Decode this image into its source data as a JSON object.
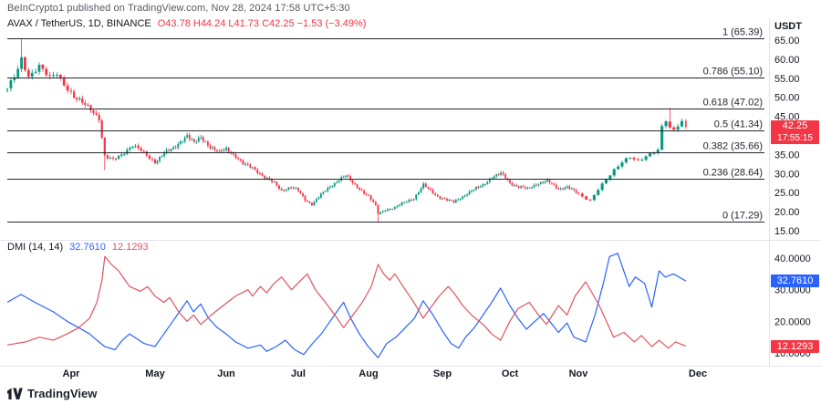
{
  "header": {
    "attribution": "BeInCrypto1 published on TradingView.com, Nov 28, 2024 17:58 UTC+5:30"
  },
  "legend": {
    "symbol": "AVAX / TetherUS, 1D, BINANCE",
    "ohlc": "O43.78  H44.24  L41.73  C42.25  −1.53 (−3.49%)"
  },
  "indicator_legend": {
    "name": "DMI (14, 14)",
    "plus_di": "32.7610",
    "minus_di": "12.1293"
  },
  "watermark": {
    "text": "TradingView"
  },
  "colors": {
    "up": "#089981",
    "down": "#F23645",
    "plus_di": "#2962FF",
    "minus_di": "#E0545E",
    "axis_text": "#131722",
    "muted": "#787b86",
    "fib": "#22262f",
    "separator": "#e0e3eb",
    "badge_red": "#F23645",
    "badge_blue": "#2962FF"
  },
  "chart_data": {
    "type": "candlestick",
    "title": "AVAX / TetherUS, 1D, BINANCE with Fibonacci retracement and DMI(14,14)",
    "symbol": "AVAX/USDT",
    "exchange": "BINANCE",
    "interval": "1D",
    "x_axis": {
      "months": [
        {
          "label": "Apr",
          "t": 0.0695
        },
        {
          "label": "May",
          "t": 0.1853
        },
        {
          "label": "Jun",
          "t": 0.305
        },
        {
          "label": "Jul",
          "t": 0.4208
        },
        {
          "label": "Aug",
          "t": 0.5405
        },
        {
          "label": "Sep",
          "t": 0.6602
        },
        {
          "label": "Oct",
          "t": 0.7761
        },
        {
          "label": "Nov",
          "t": 0.8958
        },
        {
          "label": "Dec",
          "t": 1.0116
        }
      ],
      "time_map": [
        [
          0,
          8
        ],
        [
          0.0695,
          78
        ],
        [
          0.1853,
          170
        ],
        [
          0.305,
          248
        ],
        [
          0.4208,
          327
        ],
        [
          0.5405,
          404
        ],
        [
          0.6602,
          485
        ],
        [
          0.7761,
          559
        ],
        [
          0.8958,
          634
        ],
        [
          1.0116,
          765
        ]
      ]
    },
    "price_pane": {
      "currency_label": "USDT",
      "y_axis": {
        "max": 65.96,
        "min": 13.8,
        "ticks": [
          {
            "label": "65.00",
            "value": 65
          },
          {
            "label": "60.00",
            "value": 60
          },
          {
            "label": "55.00",
            "value": 55
          },
          {
            "label": "50.00",
            "value": 50
          },
          {
            "label": "45.00",
            "value": 45
          },
          {
            "label": "35.00",
            "value": 35
          },
          {
            "label": "30.00",
            "value": 30
          },
          {
            "label": "25.00",
            "value": 25
          },
          {
            "label": "20.00",
            "value": 20
          },
          {
            "label": "15.00",
            "value": 15
          }
        ]
      },
      "fib_levels": [
        {
          "label": "1 (65.39)",
          "price": 65.39
        },
        {
          "label": "0.786 (55.10)",
          "price": 55.1
        },
        {
          "label": "0.618 (47.02)",
          "price": 47.02
        },
        {
          "label": "0.5 (41.34)",
          "price": 41.34
        },
        {
          "label": "0.382 (35.66)",
          "price": 35.66
        },
        {
          "label": "0.236 (28.64)",
          "price": 28.64
        },
        {
          "label": "0 (17.29)",
          "price": 17.29
        }
      ],
      "candle_count": 260,
      "close_path": [
        [
          0,
          52
        ],
        [
          0.0116,
          57.5
        ],
        [
          0.0154,
          60.5
        ],
        [
          0.0232,
          55.5
        ],
        [
          0.0347,
          58
        ],
        [
          0.0463,
          55
        ],
        [
          0.0541,
          56.5
        ],
        [
          0.0618,
          53.5
        ],
        [
          0.0734,
          50
        ],
        [
          0.0849,
          48.5
        ],
        [
          0.0965,
          47
        ],
        [
          0.1081,
          44.5
        ],
        [
          0.1158,
          34.5
        ],
        [
          0.1274,
          33.5
        ],
        [
          0.139,
          35
        ],
        [
          0.1544,
          37.5
        ],
        [
          0.166,
          36
        ],
        [
          0.1776,
          34
        ],
        [
          0.1853,
          33
        ],
        [
          0.2008,
          35.5
        ],
        [
          0.2162,
          36.5
        ],
        [
          0.2317,
          39
        ],
        [
          0.2394,
          40
        ],
        [
          0.251,
          38
        ],
        [
          0.2626,
          39.5
        ],
        [
          0.278,
          37
        ],
        [
          0.2934,
          35.5
        ],
        [
          0.305,
          36.5
        ],
        [
          0.3205,
          34.5
        ],
        [
          0.332,
          32.5
        ],
        [
          0.3475,
          31.5
        ],
        [
          0.3668,
          29
        ],
        [
          0.3822,
          27.5
        ],
        [
          0.3938,
          25.5
        ],
        [
          0.4093,
          26.5
        ],
        [
          0.4208,
          25.5
        ],
        [
          0.4324,
          23
        ],
        [
          0.444,
          22
        ],
        [
          0.4595,
          24.5
        ],
        [
          0.4749,
          26.5
        ],
        [
          0.4903,
          28.5
        ],
        [
          0.5019,
          29.5
        ],
        [
          0.5135,
          27.5
        ],
        [
          0.5251,
          26
        ],
        [
          0.5405,
          24
        ],
        [
          0.5521,
          21.5
        ],
        [
          0.556,
          19.5
        ],
        [
          0.5676,
          20.5
        ],
        [
          0.583,
          21
        ],
        [
          0.5985,
          22.5
        ],
        [
          0.6139,
          23.5
        ],
        [
          0.6293,
          27
        ],
        [
          0.6409,
          25.5
        ],
        [
          0.6525,
          24
        ],
        [
          0.6602,
          23.5
        ],
        [
          0.6795,
          22.5
        ],
        [
          0.695,
          24
        ],
        [
          0.7104,
          25.5
        ],
        [
          0.7297,
          27
        ],
        [
          0.7452,
          29
        ],
        [
          0.7606,
          30
        ],
        [
          0.7683,
          29
        ],
        [
          0.7761,
          27.5
        ],
        [
          0.7915,
          26.5
        ],
        [
          0.807,
          26
        ],
        [
          0.8263,
          27.5
        ],
        [
          0.8417,
          28
        ],
        [
          0.861,
          26
        ],
        [
          0.8764,
          26.5
        ],
        [
          0.888,
          25.5
        ],
        [
          0.8958,
          24.5
        ],
        [
          0.9073,
          23
        ],
        [
          0.9151,
          26
        ],
        [
          0.9266,
          29.5
        ],
        [
          0.9382,
          33
        ],
        [
          0.9459,
          34.5
        ],
        [
          0.9537,
          33.5
        ],
        [
          0.9653,
          35
        ],
        [
          0.973,
          36
        ],
        [
          0.9768,
          42
        ],
        [
          0.9807,
          44
        ],
        [
          0.9846,
          42
        ],
        [
          0.9884,
          41.5
        ],
        [
          0.9923,
          43
        ],
        [
          0.9961,
          43.78
        ],
        [
          1,
          42.25
        ]
      ],
      "wick_events": [
        {
          "t": 0.0154,
          "high": 65.39
        },
        {
          "t": 0.1158,
          "low": 30.9
        },
        {
          "t": 0.556,
          "low": 17.29
        },
        {
          "t": 0.9846,
          "high": 47.2
        }
      ],
      "last_candle": {
        "o": 43.78,
        "h": 44.24,
        "l": 41.73,
        "c": 42.25
      },
      "last_price": {
        "value": "42.25",
        "countdown": "17:55:15"
      }
    },
    "dmi_pane": {
      "name": "DMI (14, 14)",
      "y_axis": {
        "max": 44.33,
        "min": 6.83,
        "ticks": [
          {
            "label": "40.0000",
            "value": 40
          },
          {
            "label": "30.0000",
            "value": 30
          },
          {
            "label": "20.0000",
            "value": 20
          },
          {
            "label": "10.0000",
            "value": 10
          }
        ]
      },
      "series": [
        {
          "name": "plus-di",
          "color": "#2962FF",
          "last_label": "32.7610",
          "last_value": 32.761,
          "points": [
            [
              0,
              26
            ],
            [
              0.015,
              28.5
            ],
            [
              0.03,
              26
            ],
            [
              0.05,
              23
            ],
            [
              0.065,
              20
            ],
            [
              0.08,
              18
            ],
            [
              0.095,
              16
            ],
            [
              0.105,
              14
            ],
            [
              0.116,
              12
            ],
            [
              0.13,
              11
            ],
            [
              0.14,
              14
            ],
            [
              0.15,
              16
            ],
            [
              0.16,
              14.5
            ],
            [
              0.17,
              13
            ],
            [
              0.185,
              12
            ],
            [
              0.2,
              16
            ],
            [
              0.215,
              20
            ],
            [
              0.23,
              24
            ],
            [
              0.239,
              26.5
            ],
            [
              0.25,
              23
            ],
            [
              0.262,
              25.5
            ],
            [
              0.275,
              21
            ],
            [
              0.29,
              18
            ],
            [
              0.305,
              16
            ],
            [
              0.32,
              13.5
            ],
            [
              0.34,
              11.5
            ],
            [
              0.36,
              12.5
            ],
            [
              0.37,
              10.5
            ],
            [
              0.385,
              12
            ],
            [
              0.4,
              14
            ],
            [
              0.415,
              11
            ],
            [
              0.43,
              9.5
            ],
            [
              0.445,
              13
            ],
            [
              0.46,
              16
            ],
            [
              0.475,
              20
            ],
            [
              0.49,
              24
            ],
            [
              0.498,
              26
            ],
            [
              0.51,
              21
            ],
            [
              0.525,
              16
            ],
            [
              0.54,
              12
            ],
            [
              0.556,
              8.5
            ],
            [
              0.57,
              13
            ],
            [
              0.585,
              15
            ],
            [
              0.6,
              18
            ],
            [
              0.615,
              21
            ],
            [
              0.629,
              26.5
            ],
            [
              0.645,
              22
            ],
            [
              0.66,
              17
            ],
            [
              0.675,
              13
            ],
            [
              0.688,
              11.5
            ],
            [
              0.7,
              15
            ],
            [
              0.715,
              18
            ],
            [
              0.73,
              22
            ],
            [
              0.745,
              26
            ],
            [
              0.76,
              30.5
            ],
            [
              0.776,
              25
            ],
            [
              0.79,
              21
            ],
            [
              0.805,
              17.5
            ],
            [
              0.82,
              20
            ],
            [
              0.835,
              22.5
            ],
            [
              0.85,
              19
            ],
            [
              0.861,
              16.5
            ],
            [
              0.876,
              19.5
            ],
            [
              0.888,
              15
            ],
            [
              0.903,
              13.5
            ],
            [
              0.912,
              22
            ],
            [
              0.92,
              32
            ],
            [
              0.926,
              40.5
            ],
            [
              0.934,
              41.5
            ],
            [
              0.945,
              31
            ],
            [
              0.951,
              34
            ],
            [
              0.96,
              32
            ],
            [
              0.967,
              24.5
            ],
            [
              0.974,
              36
            ],
            [
              0.98,
              34
            ],
            [
              0.988,
              35
            ],
            [
              1,
              32.761
            ]
          ]
        },
        {
          "name": "minus-di",
          "color": "#E0545E",
          "last_label": "12.1293",
          "last_value": 12.129,
          "points": [
            [
              0,
              12.5
            ],
            [
              0.02,
              13.5
            ],
            [
              0.035,
              15
            ],
            [
              0.05,
              14
            ],
            [
              0.065,
              16
            ],
            [
              0.08,
              18
            ],
            [
              0.095,
              21
            ],
            [
              0.105,
              26
            ],
            [
              0.112,
              33
            ],
            [
              0.116,
              40.5
            ],
            [
              0.125,
              38
            ],
            [
              0.135,
              36
            ],
            [
              0.15,
              31
            ],
            [
              0.165,
              29.5
            ],
            [
              0.175,
              31
            ],
            [
              0.185,
              28
            ],
            [
              0.2,
              26
            ],
            [
              0.21,
              27.5
            ],
            [
              0.225,
              23
            ],
            [
              0.239,
              20
            ],
            [
              0.25,
              22
            ],
            [
              0.262,
              19
            ],
            [
              0.28,
              22
            ],
            [
              0.3,
              25
            ],
            [
              0.32,
              28
            ],
            [
              0.34,
              30
            ],
            [
              0.347,
              28
            ],
            [
              0.36,
              31
            ],
            [
              0.37,
              29
            ],
            [
              0.382,
              32
            ],
            [
              0.394,
              34
            ],
            [
              0.41,
              30
            ],
            [
              0.42,
              32
            ],
            [
              0.436,
              35
            ],
            [
              0.45,
              30
            ],
            [
              0.467,
              26
            ],
            [
              0.483,
              22
            ],
            [
              0.498,
              18
            ],
            [
              0.51,
              21
            ],
            [
              0.53,
              26
            ],
            [
              0.545,
              31
            ],
            [
              0.556,
              38
            ],
            [
              0.565,
              35
            ],
            [
              0.575,
              33
            ],
            [
              0.583,
              35
            ],
            [
              0.6,
              30
            ],
            [
              0.614,
              26
            ],
            [
              0.629,
              21
            ],
            [
              0.64,
              24
            ],
            [
              0.655,
              28
            ],
            [
              0.67,
              31
            ],
            [
              0.68,
              29
            ],
            [
              0.695,
              25
            ],
            [
              0.71,
              22
            ],
            [
              0.73,
              19
            ],
            [
              0.745,
              16
            ],
            [
              0.76,
              14
            ],
            [
              0.776,
              20
            ],
            [
              0.79,
              24
            ],
            [
              0.81,
              26
            ],
            [
              0.826,
              22
            ],
            [
              0.84,
              19
            ],
            [
              0.861,
              25
            ],
            [
              0.876,
              22
            ],
            [
              0.89,
              28
            ],
            [
              0.903,
              32.5
            ],
            [
              0.916,
              25
            ],
            [
              0.93,
              15
            ],
            [
              0.94,
              16.5
            ],
            [
              0.95,
              13.5
            ],
            [
              0.957,
              15.5
            ],
            [
              0.967,
              12
            ],
            [
              0.974,
              14
            ],
            [
              0.983,
              11.5
            ],
            [
              0.99,
              13.5
            ],
            [
              1,
              12.129
            ]
          ]
        }
      ]
    }
  }
}
